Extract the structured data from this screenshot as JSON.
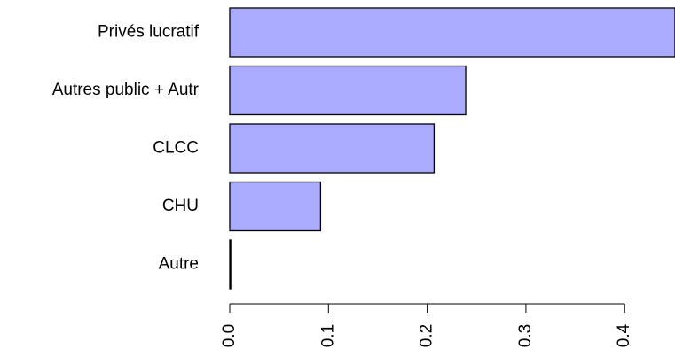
{
  "chart_data": {
    "type": "bar",
    "orientation": "horizontal",
    "categories": [
      "Privés lucratif",
      "Autres public + Autr",
      "CLCC",
      "CHU",
      "Autre"
    ],
    "values": [
      0.451,
      0.239,
      0.207,
      0.092,
      0.001
    ],
    "color": "#aaaaff",
    "xlim": [
      0,
      0.451
    ],
    "xticks": [
      {
        "value": 0,
        "label": "0.0"
      },
      0.1,
      0.2,
      0.3,
      0.4
    ]
  }
}
